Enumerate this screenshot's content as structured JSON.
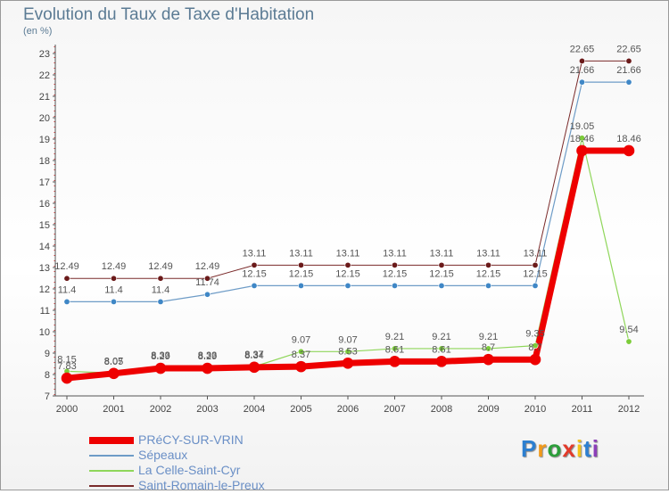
{
  "chart_data": {
    "type": "line",
    "title": "Evolution du Taux de Taxe d'Habitation",
    "subtitle": "(en %)",
    "xlabel": "",
    "ylabel": "",
    "ylim": [
      7,
      23
    ],
    "yticks": [
      "7",
      "8",
      "9",
      "10",
      "11",
      "12",
      "13",
      "14",
      "15",
      "16",
      "17",
      "18",
      "19",
      "20",
      "21",
      "22",
      "23"
    ],
    "x": [
      "2000",
      "2001",
      "2002",
      "2003",
      "2004",
      "2005",
      "2006",
      "2007",
      "2008",
      "2009",
      "2010",
      "2011",
      "2012"
    ],
    "grid": false,
    "legend_position": "bottom-left",
    "series": [
      {
        "name": "Saint-Romain-le-Preux",
        "color": "#7a2a2a",
        "marker": "#6b1a1a",
        "width": 1,
        "values": [
          12.49,
          12.49,
          12.49,
          12.49,
          13.11,
          13.11,
          13.11,
          13.11,
          13.11,
          13.11,
          13.11,
          22.65,
          22.65
        ],
        "labels": [
          "12.49",
          "12.49",
          "12.49",
          "12.49",
          "13.11",
          "13.11",
          "13.11",
          "13.11",
          "13.11",
          "13.11",
          "13.11",
          "22.65",
          "22.65"
        ]
      },
      {
        "name": "Sépeaux",
        "color": "#6e9cc7",
        "marker": "#3f87c6",
        "width": 1.2,
        "values": [
          11.4,
          11.4,
          11.4,
          11.74,
          12.15,
          12.15,
          12.15,
          12.15,
          12.15,
          12.15,
          12.15,
          21.66,
          21.66
        ],
        "labels": [
          "11.4",
          "11.4",
          "11.4",
          "11.74",
          "12.15",
          "12.15",
          "12.15",
          "12.15",
          "12.15",
          "12.15",
          "12.15",
          "21.66",
          "21.66"
        ]
      },
      {
        "name": "La Celle-Saint-Cyr",
        "color": "#8fd65a",
        "marker": "#7ccc3a",
        "width": 1.2,
        "values": [
          8.15,
          8.07,
          8.33,
          8.33,
          8.37,
          9.07,
          9.07,
          9.21,
          9.21,
          9.21,
          9.35,
          19.05,
          9.54
        ],
        "labels": [
          "8.15",
          "8.07",
          "8.33",
          "8.33",
          "8.37",
          "9.07",
          "9.07",
          "9.21",
          "9.21",
          "9.21",
          "9.35",
          "19.05",
          "9.54"
        ]
      },
      {
        "name": "PRéCY-SUR-VRIN",
        "color": "#ee0000",
        "marker": "#ee0000",
        "width": 7,
        "values": [
          7.83,
          8.05,
          8.29,
          8.29,
          8.34,
          8.37,
          8.53,
          8.61,
          8.61,
          8.7,
          8.7,
          18.46,
          18.46
        ],
        "labels": [
          "7.83",
          "8.05",
          "8.29",
          "8.29",
          "8.34",
          "8.37",
          "8.53",
          "8.61",
          "8.61",
          "8.7",
          "8.7",
          "18.46",
          "18.46"
        ]
      }
    ],
    "legend": [
      "PRéCY-SUR-VRIN",
      "Sépeaux",
      "La Celle-Saint-Cyr",
      "Saint-Romain-le-Preux"
    ]
  },
  "logo": {
    "letters": [
      "P",
      "r",
      "o",
      "x",
      "i",
      "t",
      "i"
    ],
    "colors": [
      "#2c7fd1",
      "#f29a1a",
      "#2c9e3a",
      "#e23a2a",
      "#f2c21a",
      "#2c7fd1",
      "#8c3fb8"
    ]
  }
}
